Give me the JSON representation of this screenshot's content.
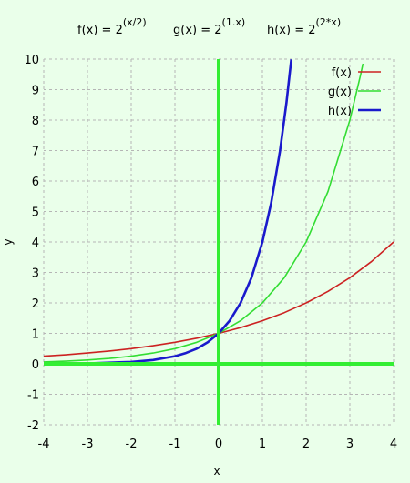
{
  "chart_data": {
    "type": "line",
    "title_parts": [
      {
        "base": "f(x) =  2",
        "exp": "(x/2)"
      },
      {
        "base": "g(x) =  2",
        "exp": "(1.x)"
      },
      {
        "base": "h(x) = 2",
        "exp": "(2*x)"
      }
    ],
    "xlabel": "x",
    "ylabel": "y",
    "xlim": [
      -4,
      4
    ],
    "ylim": [
      -2,
      10
    ],
    "x_ticks": [
      -4,
      -3,
      -2,
      -1,
      0,
      1,
      2,
      3,
      4
    ],
    "y_ticks": [
      -2,
      -1,
      0,
      1,
      2,
      3,
      4,
      5,
      6,
      7,
      8,
      9,
      10
    ],
    "grid": true,
    "legend_position": "top-right",
    "series": [
      {
        "name": "f(x)",
        "color": "#cc2222",
        "line_width": 1.6,
        "x": [
          -4,
          -3.5,
          -3,
          -2.5,
          -2,
          -1.5,
          -1,
          -0.5,
          0,
          0.5,
          1,
          1.5,
          2,
          2.5,
          3,
          3.5,
          4
        ],
        "y": [
          0.25,
          0.297,
          0.354,
          0.42,
          0.5,
          0.595,
          0.707,
          0.841,
          1,
          1.189,
          1.414,
          1.682,
          2,
          2.378,
          2.828,
          3.364,
          4
        ]
      },
      {
        "name": "g(x)",
        "color": "#33dd33",
        "line_width": 1.6,
        "x": [
          -4,
          -3.5,
          -3,
          -2.5,
          -2,
          -1.5,
          -1,
          -0.5,
          0,
          0.5,
          1,
          1.5,
          2,
          2.5,
          3,
          3.25,
          3.3
        ],
        "y": [
          0.0625,
          0.088,
          0.125,
          0.177,
          0.25,
          0.354,
          0.5,
          0.707,
          1,
          1.414,
          2,
          2.828,
          4,
          5.657,
          8,
          9.514,
          9.85
        ]
      },
      {
        "name": "h(x)",
        "color": "#1a1acc",
        "line_width": 2.6,
        "x": [
          -4,
          -3,
          -2,
          -1.5,
          -1,
          -0.75,
          -0.5,
          -0.25,
          0,
          0.25,
          0.5,
          0.75,
          1,
          1.2,
          1.4,
          1.55,
          1.66
        ],
        "y": [
          0.0039,
          0.0156,
          0.0625,
          0.125,
          0.25,
          0.354,
          0.5,
          0.707,
          1,
          1.414,
          2,
          2.828,
          4,
          5.278,
          6.964,
          8.574,
          9.99
        ]
      }
    ],
    "axis_line_color": "#33ee33"
  }
}
